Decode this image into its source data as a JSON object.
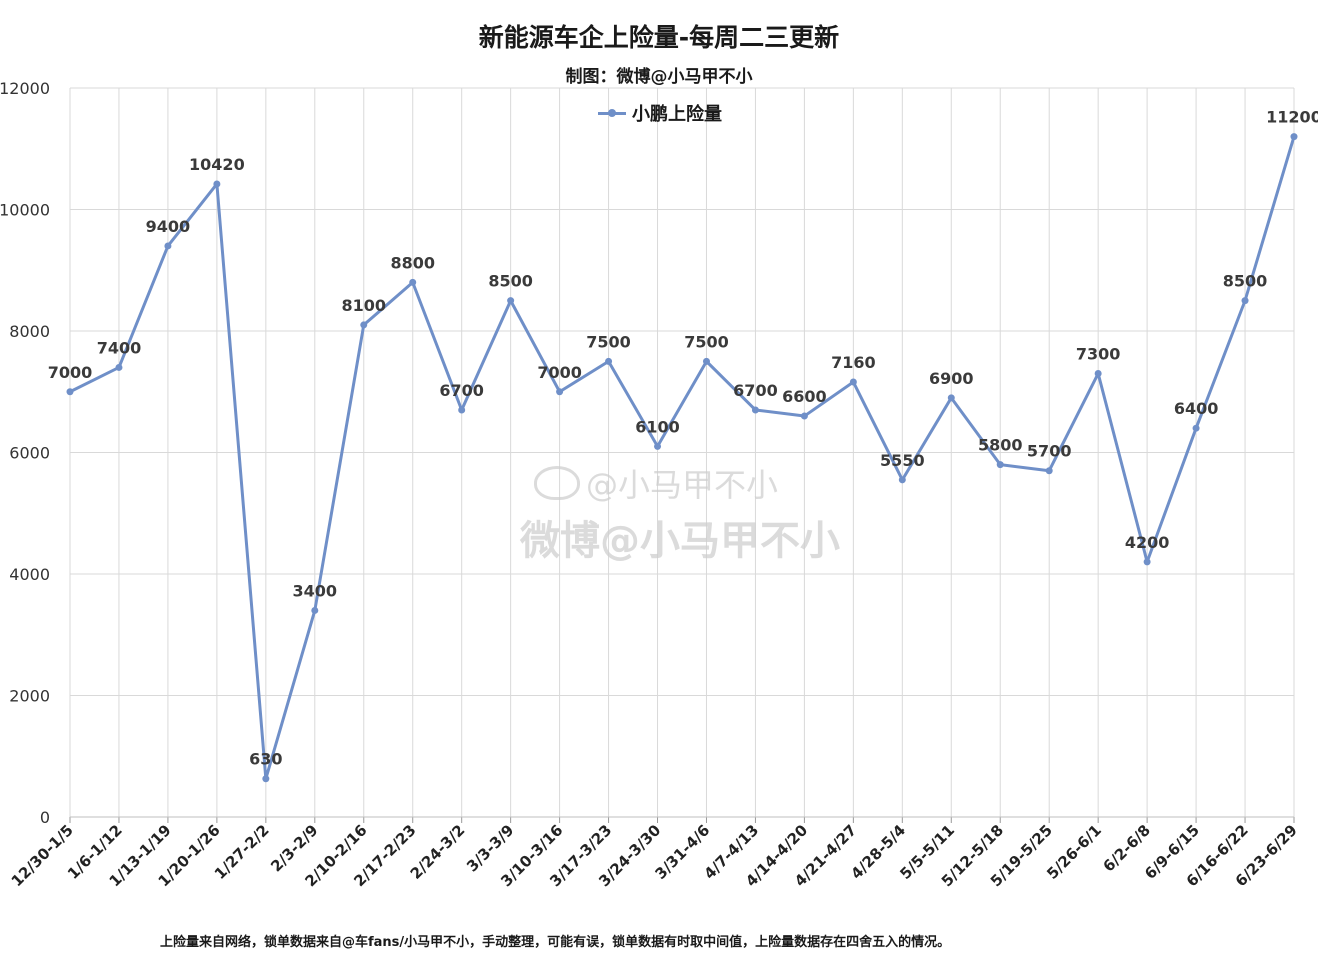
{
  "title": "新能源车企上险量-每周二三更新",
  "subtitle": "制图：微博@小马甲不小",
  "footnote": "上险量来自网络，锁单数据来自@车fans/小马甲不小，手动整理，可能有误，锁单数据有时取中间值，上险量数据存在四舍五入的情况。",
  "watermark": {
    "line1": "@小马甲不小",
    "line2": "微博@小马甲不小",
    "icon": "weibo-logo-icon"
  },
  "colors": {
    "series": "#6f8fc8",
    "grid": "#d9d9d9"
  },
  "chart_data": {
    "type": "line",
    "title": "新能源车企上险量-每周二三更新",
    "subtitle": "制图：微博@小马甲不小",
    "xlabel": "",
    "ylabel": "",
    "ylim": [
      0,
      12000
    ],
    "yticks": [
      0,
      2000,
      4000,
      6000,
      8000,
      10000,
      12000
    ],
    "grid": true,
    "legend_position": "top-center",
    "categories": [
      "12/30-1/5",
      "1/6-1/12",
      "1/13-1/19",
      "1/20-1/26",
      "1/27-2/2",
      "2/3-2/9",
      "2/10-2/16",
      "2/17-2/23",
      "2/24-3/2",
      "3/3-3/9",
      "3/10-3/16",
      "3/17-3/23",
      "3/24-3/30",
      "3/31-4/6",
      "4/7-4/13",
      "4/14-4/20",
      "4/21-4/27",
      "4/28-5/4",
      "5/5-5/11",
      "5/12-5/18",
      "5/19-5/25",
      "5/26-6/1",
      "6/2-6/8",
      "6/9-6/15",
      "6/16-6/22",
      "6/23-6/29"
    ],
    "series": [
      {
        "name": "小鹏上险量",
        "values": [
          7000,
          7400,
          9400,
          10420,
          630,
          3400,
          8100,
          8800,
          6700,
          8500,
          7000,
          7500,
          6100,
          7500,
          6700,
          6600,
          7160,
          5550,
          6900,
          5800,
          5700,
          7300,
          4200,
          6400,
          8500,
          11200
        ]
      }
    ]
  }
}
